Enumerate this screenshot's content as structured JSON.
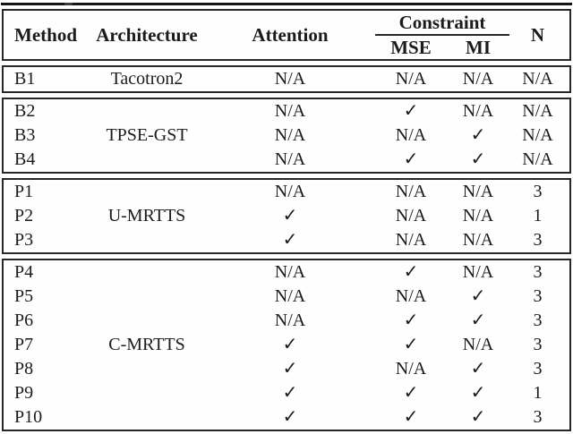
{
  "table": {
    "headers": {
      "method": "Method",
      "architecture": "Architecture",
      "attention": "Attention",
      "constraint": "Constraint",
      "mse": "MSE",
      "mi": "MI",
      "n": "N"
    },
    "blocks": [
      {
        "architecture": "Tacotron2",
        "rows": [
          {
            "method": "B1",
            "attention": "N/A",
            "mse": "N/A",
            "mi": "N/A",
            "n": "N/A"
          }
        ]
      },
      {
        "architecture": "TPSE-GST",
        "rows": [
          {
            "method": "B2",
            "attention": "N/A",
            "mse": "✓",
            "mi": "N/A",
            "n": "N/A"
          },
          {
            "method": "B3",
            "attention": "N/A",
            "mse": "N/A",
            "mi": "✓",
            "n": "N/A"
          },
          {
            "method": "B4",
            "attention": "N/A",
            "mse": "✓",
            "mi": "✓",
            "n": "N/A"
          }
        ]
      },
      {
        "architecture": "U-MRTTS",
        "rows": [
          {
            "method": "P1",
            "attention": "N/A",
            "mse": "N/A",
            "mi": "N/A",
            "n": "3"
          },
          {
            "method": "P2",
            "attention": "✓",
            "mse": "N/A",
            "mi": "N/A",
            "n": "1"
          },
          {
            "method": "P3",
            "attention": "✓",
            "mse": "N/A",
            "mi": "N/A",
            "n": "3"
          }
        ]
      },
      {
        "architecture": "C-MRTTS",
        "rows": [
          {
            "method": "P4",
            "attention": "N/A",
            "mse": "✓",
            "mi": "N/A",
            "n": "3"
          },
          {
            "method": "P5",
            "attention": "N/A",
            "mse": "N/A",
            "mi": "✓",
            "n": "3"
          },
          {
            "method": "P6",
            "attention": "N/A",
            "mse": "✓",
            "mi": "✓",
            "n": "3"
          },
          {
            "method": "P7",
            "attention": "✓",
            "mse": "✓",
            "mi": "N/A",
            "n": "3"
          },
          {
            "method": "P8",
            "attention": "✓",
            "mse": "N/A",
            "mi": "✓",
            "n": "3"
          },
          {
            "method": "P9",
            "attention": "✓",
            "mse": "✓",
            "mi": "✓",
            "n": "1"
          },
          {
            "method": "P10",
            "attention": "✓",
            "mse": "✓",
            "mi": "✓",
            "n": "3"
          }
        ]
      }
    ]
  },
  "colors": {
    "text": "#1b1b1b",
    "border": "#272727",
    "rule": "#141414",
    "background": "#fefefe"
  }
}
